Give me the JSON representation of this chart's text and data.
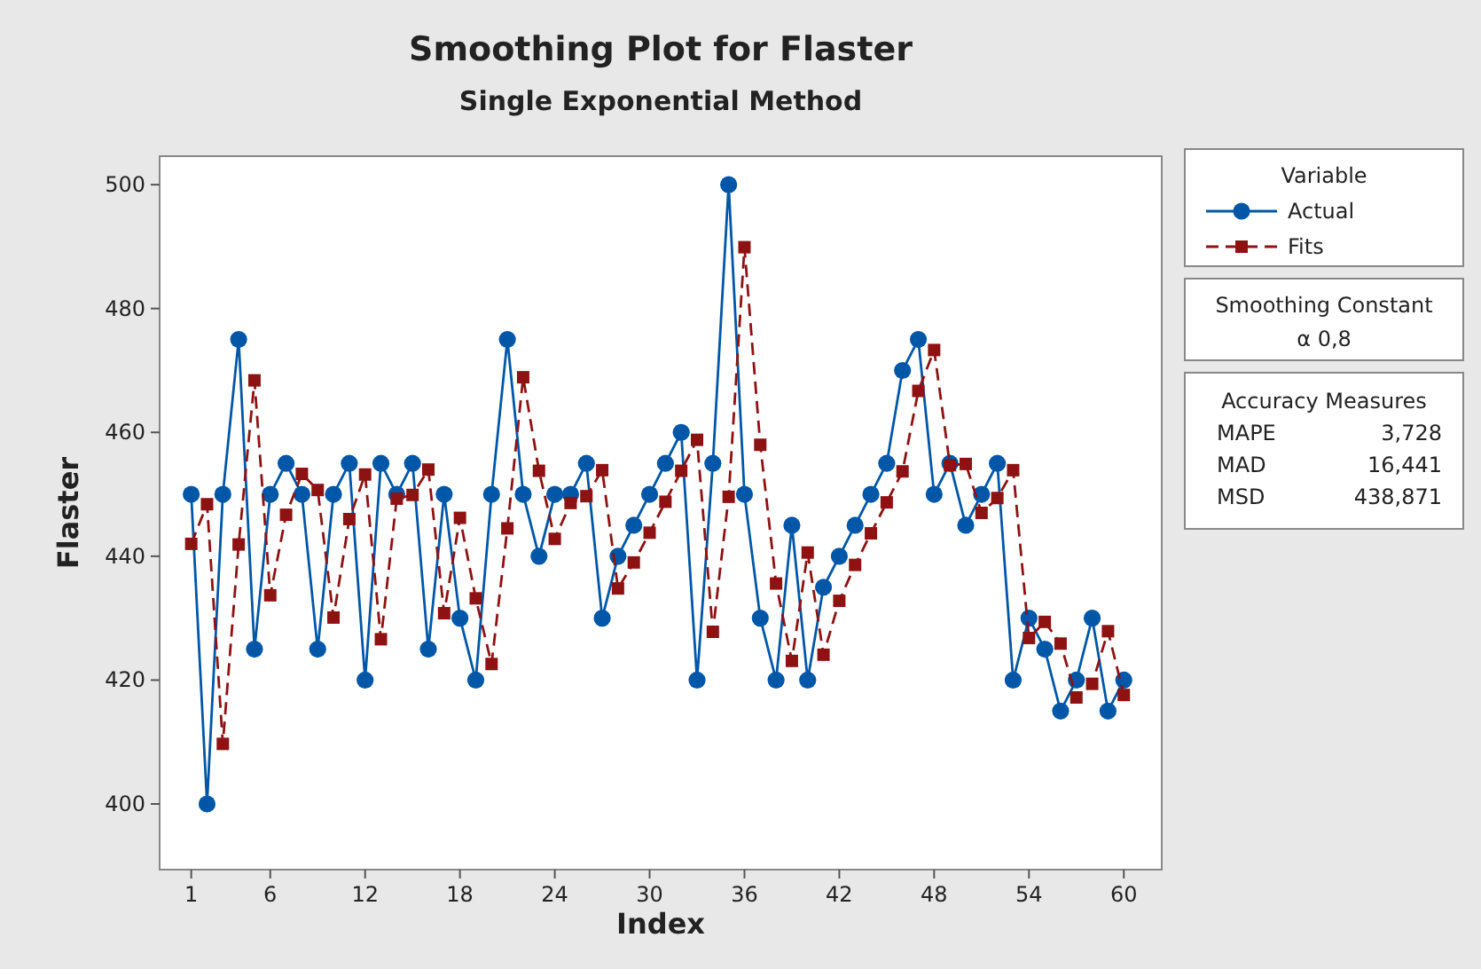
{
  "chart_data": {
    "type": "line",
    "title": "Smoothing Plot for Flaster",
    "subtitle": "Single Exponential Method",
    "xlabel": "Index",
    "ylabel": "Flaster",
    "x": [
      1,
      2,
      3,
      4,
      5,
      6,
      7,
      8,
      9,
      10,
      11,
      12,
      13,
      14,
      15,
      16,
      17,
      18,
      19,
      20,
      21,
      22,
      23,
      24,
      25,
      26,
      27,
      28,
      29,
      30,
      31,
      32,
      33,
      34,
      35,
      36,
      37,
      38,
      39,
      40,
      41,
      42,
      43,
      44,
      45,
      46,
      47,
      48,
      49,
      50,
      51,
      52,
      53,
      54,
      55,
      56,
      57,
      58,
      59,
      60
    ],
    "series": [
      {
        "name": "Actual",
        "color": "#0057a8",
        "marker": "circle",
        "line_style": "solid",
        "values": [
          450,
          400,
          450,
          475,
          425,
          450,
          455,
          450,
          425,
          450,
          455,
          420,
          455,
          450,
          455,
          425,
          450,
          430,
          420,
          450,
          475,
          450,
          440,
          450,
          450,
          455,
          430,
          440,
          445,
          450,
          455,
          460,
          420,
          455,
          500,
          450,
          430,
          420,
          445,
          420,
          435,
          440,
          445,
          450,
          455,
          470,
          475,
          450,
          455,
          445,
          450,
          455,
          420,
          430,
          425,
          415,
          420,
          430,
          415,
          420
        ]
      },
      {
        "name": "Fits",
        "color": "#8e1212",
        "marker": "square",
        "line_style": "dashed",
        "values": [
          442,
          448.4,
          409.7,
          441.9,
          468.4,
          433.7,
          446.7,
          453.3,
          450.7,
          430.1,
          446,
          453.2,
          426.6,
          449.3,
          449.9,
          454,
          430.8,
          446.2,
          433.2,
          422.6,
          444.5,
          468.9,
          453.8,
          442.8,
          448.6,
          449.7,
          453.9,
          434.8,
          439,
          443.8,
          448.8,
          453.8,
          458.8,
          427.8,
          449.6,
          489.9,
          458,
          435.6,
          423.1,
          440.6,
          424.1,
          432.8,
          438.6,
          443.7,
          448.7,
          453.7,
          466.7,
          473.3,
          454.7,
          454.9,
          447,
          449.4,
          453.9,
          426.8,
          429.4,
          425.9,
          417.2,
          419.4,
          427.9,
          417.6
        ]
      }
    ],
    "legend_title": "Variable",
    "legend": "right",
    "annotations": [
      "Smoothing Constant",
      "α 0,8",
      "Accuracy Measures",
      "MAPE 3,728",
      "MAD 16,441",
      "MSD 438,871"
    ],
    "xlim": [
      -1,
      62.4
    ],
    "xticks": [
      1,
      6,
      12,
      18,
      24,
      30,
      36,
      42,
      48,
      54,
      60
    ],
    "ylim": [
      389.4,
      504.6
    ],
    "yticks": [
      400,
      420,
      440,
      460,
      480,
      500
    ],
    "grid": false
  }
}
